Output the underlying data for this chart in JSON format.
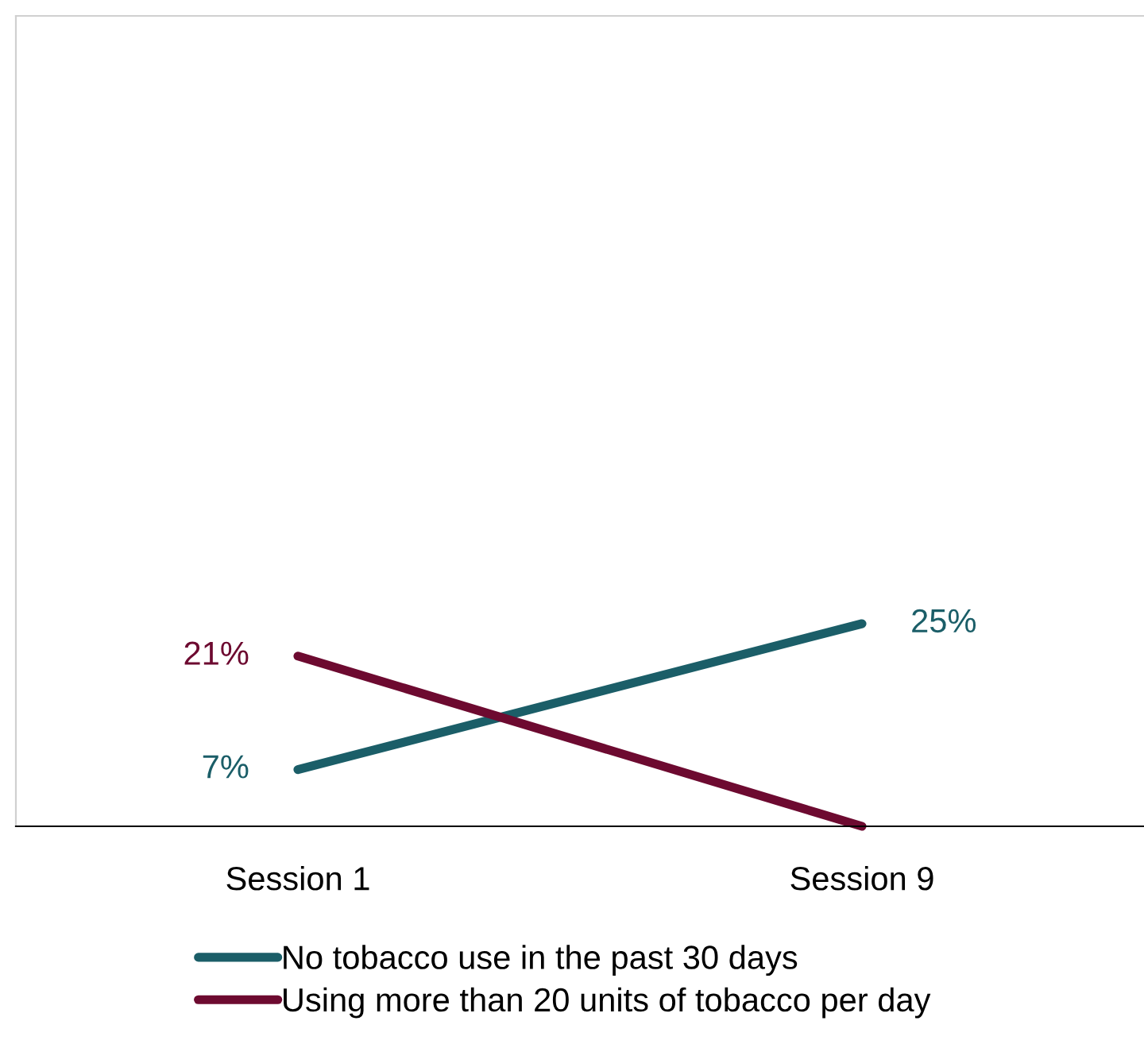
{
  "chart_data": {
    "type": "line",
    "categories": [
      "Session 1",
      "Session 9"
    ],
    "series": [
      {
        "name": "No tobacco use in the past 30 days",
        "color": "#1b5e68",
        "values": [
          7,
          25
        ],
        "value_labels": [
          "7%",
          "25%"
        ]
      },
      {
        "name": "Using more than 20 units of tobacco per day",
        "color": "#6d0a30",
        "values": [
          21,
          0
        ],
        "value_labels": [
          "21%",
          null
        ]
      }
    ],
    "ylim": [
      0,
      100
    ],
    "grid": false,
    "legend": "bottom",
    "marker": "none",
    "line_style": "solid"
  }
}
